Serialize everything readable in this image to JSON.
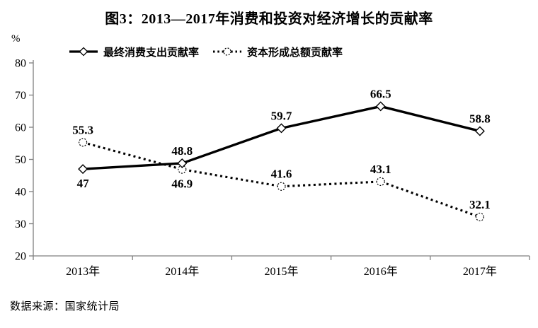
{
  "figure": {
    "title": "图3：2013—2017年消费和投资对经济增长的贡献率",
    "source": "数据来源：国家统计局"
  },
  "legend": [
    {
      "label": "最终消费支出贡献率",
      "style": "solid-line-diamond-marker"
    },
    {
      "label": "资本形成总额贡献率",
      "style": "dotted-line-circle-marker"
    }
  ],
  "chart_data": {
    "type": "line",
    "categories": [
      "2013年",
      "2014年",
      "2015年",
      "2016年",
      "2017年"
    ],
    "series": [
      {
        "name": "最终消费支出贡献率",
        "values": [
          47,
          48.8,
          59.7,
          66.5,
          58.8
        ],
        "line": "solid",
        "marker": "diamond",
        "label_position": [
          "below",
          "above",
          "above",
          "above",
          "above"
        ]
      },
      {
        "name": "资本形成总额贡献率",
        "values": [
          55.3,
          46.9,
          41.6,
          43.1,
          32.1
        ],
        "line": "dotted",
        "marker": "circle",
        "label_position": [
          "above",
          "below",
          "above",
          "above",
          "above"
        ]
      }
    ],
    "title": "图3：2013—2017年消费和投资对经济增长的贡献率",
    "xlabel": "",
    "ylabel": "%",
    "y_ticks": [
      20,
      30,
      40,
      50,
      60,
      70,
      80
    ],
    "ylim": [
      20,
      80
    ],
    "grid": false,
    "legend_position": "top"
  },
  "colors": {
    "line": "#000000",
    "axis": "#7f7f7f",
    "text": "#000000",
    "background": "#ffffff",
    "marker_fill": "#ffffff"
  }
}
